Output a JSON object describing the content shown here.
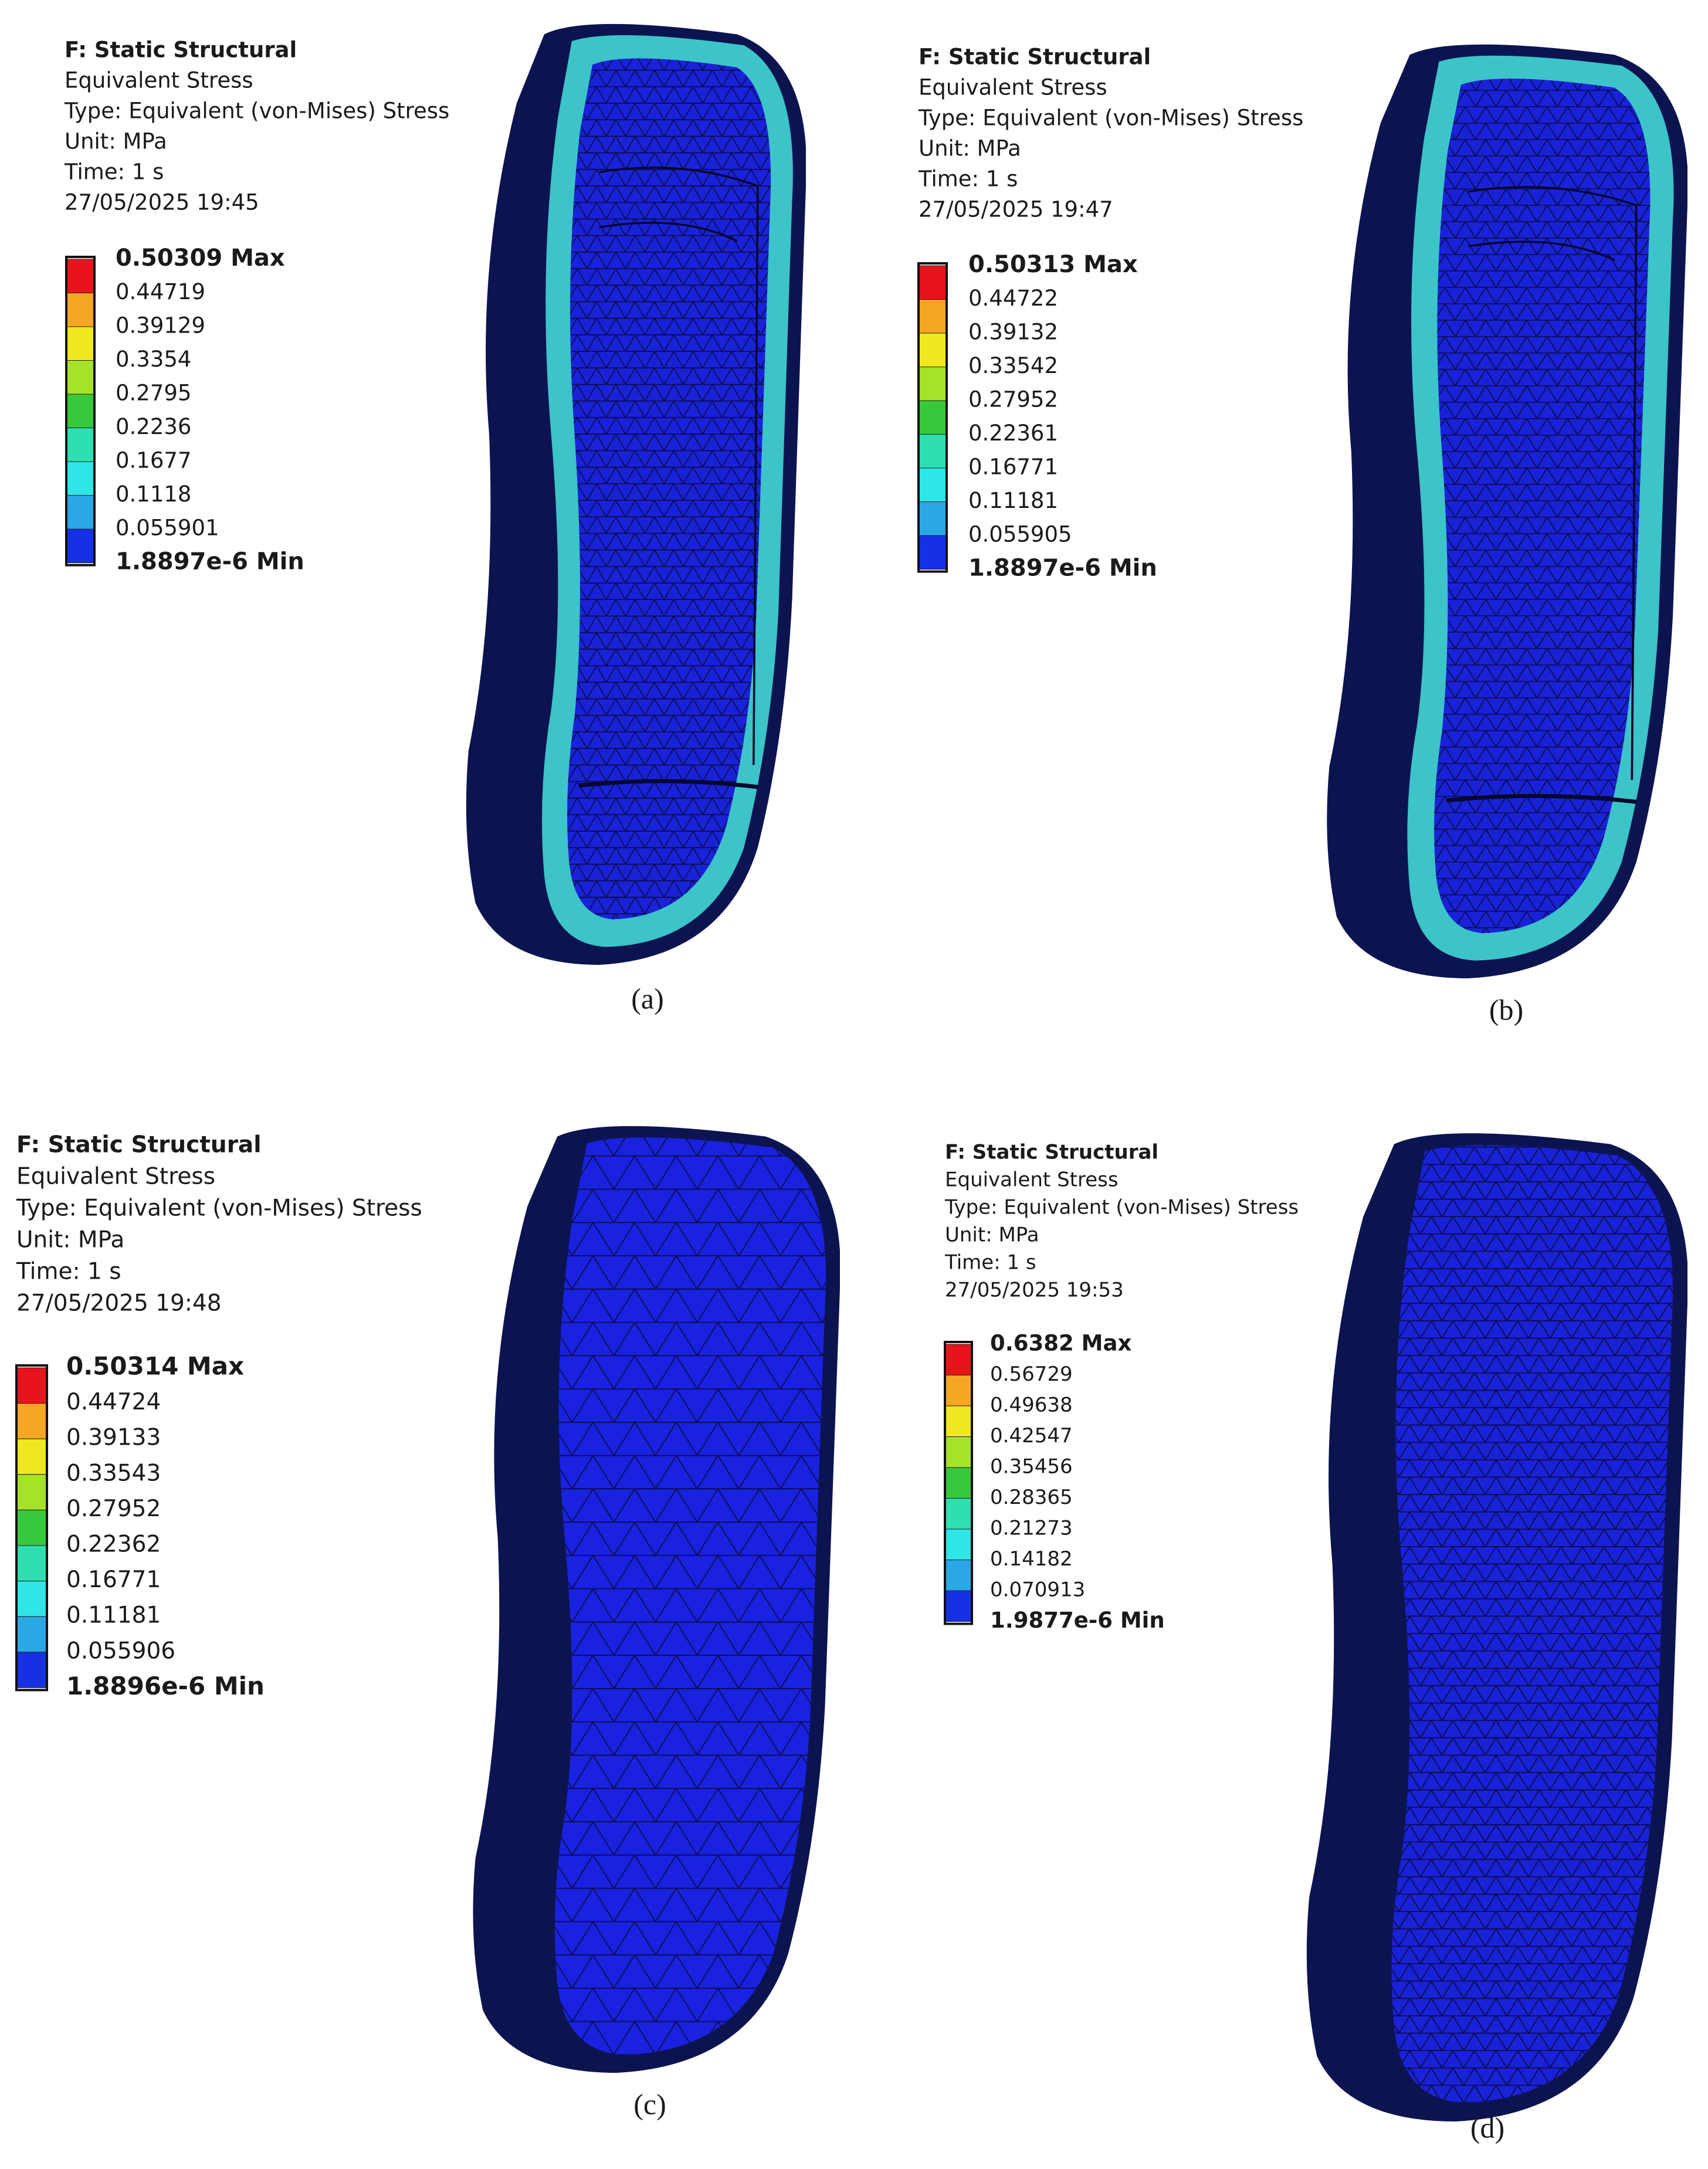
{
  "panels": [
    {
      "header": [
        "F: Static Structural",
        "Equivalent Stress",
        "Type: Equivalent (von-Mises) Stress",
        "Unit: MPa",
        "Time: 1 s",
        "27/05/2025 19:45"
      ],
      "legend": [
        "0.50309 Max",
        "0.44719",
        "0.39129",
        "0.3354",
        "0.2795",
        "0.2236",
        "0.1677",
        "0.1118",
        "0.055901",
        "1.8897e-6 Min"
      ],
      "caption": "(a)"
    },
    {
      "header": [
        "F: Static Structural",
        "Equivalent Stress",
        "Type: Equivalent (von-Mises) Stress",
        "Unit: MPa",
        "Time: 1 s",
        "27/05/2025 19:47"
      ],
      "legend": [
        "0.50313 Max",
        "0.44722",
        "0.39132",
        "0.33542",
        "0.27952",
        "0.22361",
        "0.16771",
        "0.11181",
        "0.055905",
        "1.8897e-6 Min"
      ],
      "caption": "(b)"
    },
    {
      "header": [
        "F: Static Structural",
        "Equivalent Stress",
        "Type: Equivalent (von-Mises) Stress",
        "Unit: MPa",
        "Time: 1 s",
        "27/05/2025 19:48"
      ],
      "legend": [
        "0.50314 Max",
        "0.44724",
        "0.39133",
        "0.33543",
        "0.27952",
        "0.22362",
        "0.16771",
        "0.11181",
        "0.055906",
        "1.8896e-6 Min"
      ],
      "caption": "(c)"
    },
    {
      "header": [
        "F: Static Structural",
        "Equivalent Stress",
        "Type: Equivalent (von-Mises) Stress",
        "Unit: MPa",
        "Time: 1 s",
        "27/05/2025 19:53"
      ],
      "legend": [
        "0.6382 Max",
        "0.56729",
        "0.49638",
        "0.42547",
        "0.35456",
        "0.28365",
        "0.21273",
        "0.14182",
        "0.070913",
        "1.9877e-6 Min"
      ],
      "caption": "(d)"
    }
  ]
}
